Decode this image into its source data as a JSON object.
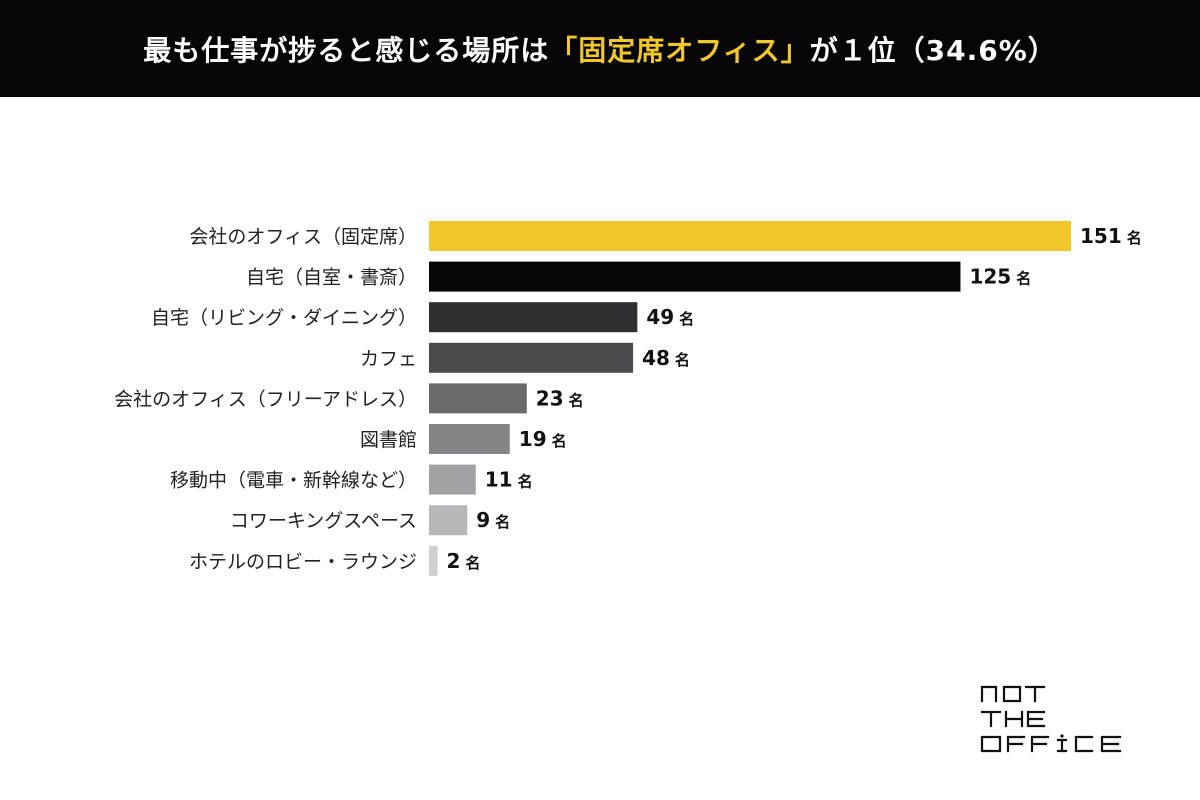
{
  "header": {
    "title_prefix": "最も仕事が捗ると感じる場所は",
    "title_highlight": "「固定席オフィス」",
    "title_suffix": "が１位（34.6%）",
    "background": "#050505",
    "highlight_color": "#f2c72b"
  },
  "chart_data": {
    "type": "bar",
    "orientation": "horizontal",
    "categories": [
      "会社のオフィス（固定席）",
      "自宅（自室・書斎）",
      "自宅（リビング・ダイニング）",
      "カフェ",
      "会社のオフィス（フリーアドレス）",
      "図書館",
      "移動中（電車・新幹線など）",
      "コワーキングスペース",
      "ホテルのロビー・ラウンジ"
    ],
    "values": [
      151,
      125,
      49,
      48,
      23,
      19,
      11,
      9,
      2
    ],
    "unit": "名",
    "colors": [
      "#f2c72b",
      "#050505",
      "#2f2e30",
      "#4a494b",
      "#6a696b",
      "#858486",
      "#a2a1a3",
      "#b8b7b9",
      "#cfcfd0"
    ],
    "xlim": [
      0,
      151
    ],
    "grid": false,
    "legend": "none"
  },
  "brand": {
    "logo_lines": [
      "NOT",
      "THE",
      "OFFICE"
    ]
  }
}
